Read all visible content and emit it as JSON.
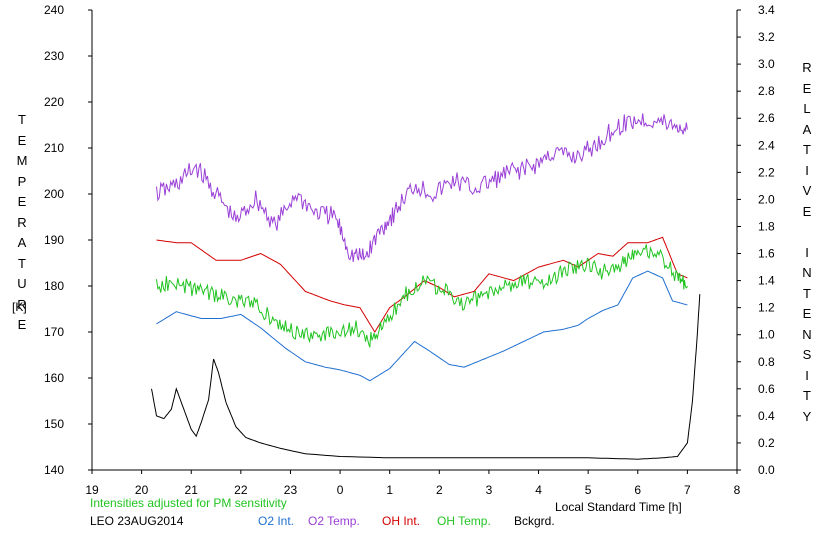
{
  "chart_data": {
    "type": "line",
    "left_title": "TEMPERATURE",
    "left_unit": "[K]",
    "right_title": "RELATIVE INTENSITY",
    "xlabel": "Local Standard Time [h]",
    "note": "Intensities adjusted for PM sensitivity",
    "station_date": "LEO 23AUG2014",
    "xlim": [
      19,
      32
    ],
    "x_ticks": [
      "19",
      "20",
      "21",
      "22",
      "23",
      "0",
      "1",
      "2",
      "3",
      "4",
      "5",
      "6",
      "7",
      "8"
    ],
    "y_left_lim": [
      140,
      240
    ],
    "y_left_ticks": [
      "140",
      "150",
      "160",
      "170",
      "180",
      "190",
      "200",
      "210",
      "220",
      "230",
      "240"
    ],
    "y_right_lim": [
      0.0,
      3.4
    ],
    "y_right_ticks": [
      "0.0",
      "0.2",
      "0.4",
      "0.6",
      "0.8",
      "1.0",
      "1.2",
      "1.4",
      "1.6",
      "1.8",
      "2.0",
      "2.2",
      "2.4",
      "2.6",
      "2.8",
      "3.0",
      "3.2",
      "3.4"
    ],
    "series": [
      {
        "name": "O2 Int.",
        "color": "#1f6fd0",
        "axis": "right",
        "x": [
          20.3,
          20.7,
          21.2,
          21.6,
          22.0,
          22.4,
          22.9,
          23.3,
          23.7,
          24.0,
          24.4,
          24.6,
          25.0,
          25.5,
          25.8,
          26.2,
          26.5,
          26.9,
          27.3,
          27.7,
          28.1,
          28.5,
          28.8,
          29.0,
          29.3,
          29.6,
          29.9,
          30.2,
          30.5,
          30.7,
          31.0
        ],
        "y": [
          1.08,
          1.17,
          1.12,
          1.12,
          1.15,
          1.05,
          0.9,
          0.8,
          0.76,
          0.74,
          0.7,
          0.66,
          0.75,
          0.95,
          0.88,
          0.78,
          0.76,
          0.82,
          0.88,
          0.95,
          1.02,
          1.04,
          1.07,
          1.12,
          1.18,
          1.22,
          1.42,
          1.47,
          1.42,
          1.25,
          1.22
        ]
      },
      {
        "name": "O2 Temp.",
        "color": "#9a40d6",
        "axis": "left",
        "x": [
          20.3,
          20.7,
          21.1,
          21.5,
          21.9,
          22.3,
          22.7,
          23.1,
          23.5,
          23.9,
          24.2,
          24.5,
          24.8,
          25.1,
          25.5,
          25.9,
          26.3,
          26.7,
          27.1,
          27.5,
          27.9,
          28.3,
          28.7,
          29.1,
          29.5,
          29.9,
          30.3,
          30.7,
          31.0
        ],
        "y": [
          200,
          202,
          206,
          200,
          194,
          199,
          193,
          200,
          196,
          195,
          187,
          186,
          192,
          196,
          202,
          200,
          203,
          201,
          203,
          205,
          206,
          209,
          208,
          210,
          214,
          216,
          216,
          215,
          214
        ]
      },
      {
        "name": "OH Int.",
        "color": "#d40000",
        "axis": "right",
        "x": [
          20.3,
          20.7,
          21.0,
          21.5,
          22.0,
          22.4,
          22.8,
          23.3,
          23.8,
          24.1,
          24.4,
          24.7,
          25.0,
          25.3,
          25.7,
          26.0,
          26.3,
          26.7,
          27.0,
          27.5,
          28.0,
          28.5,
          28.8,
          29.2,
          29.5,
          29.8,
          30.2,
          30.5,
          30.8,
          31.0
        ],
        "y": [
          1.7,
          1.68,
          1.68,
          1.55,
          1.55,
          1.6,
          1.52,
          1.32,
          1.25,
          1.22,
          1.2,
          1.02,
          1.2,
          1.28,
          1.4,
          1.35,
          1.28,
          1.32,
          1.45,
          1.4,
          1.5,
          1.55,
          1.5,
          1.6,
          1.58,
          1.68,
          1.68,
          1.72,
          1.45,
          1.42
        ]
      },
      {
        "name": "OH Temp.",
        "color": "#22c422",
        "axis": "left",
        "x": [
          20.3,
          20.7,
          21.1,
          21.5,
          21.9,
          22.3,
          22.7,
          23.1,
          23.5,
          23.9,
          24.3,
          24.6,
          24.9,
          25.3,
          25.7,
          26.1,
          26.5,
          26.9,
          27.3,
          27.7,
          28.1,
          28.5,
          28.9,
          29.3,
          29.7,
          30.0,
          30.4,
          30.8,
          31.0
        ],
        "y": [
          180,
          181,
          179,
          178,
          177,
          176,
          172,
          170,
          169,
          170,
          171,
          168,
          172,
          178,
          181,
          179,
          176,
          178,
          180,
          181,
          181,
          183,
          185,
          183,
          185,
          188,
          187,
          182,
          180
        ]
      },
      {
        "name": "Bckgrd.",
        "color": "#000000",
        "axis": "right",
        "x": [
          20.2,
          20.3,
          20.45,
          20.6,
          20.7,
          20.9,
          21.0,
          21.1,
          21.2,
          21.35,
          21.45,
          21.55,
          21.7,
          21.9,
          22.1,
          22.4,
          22.8,
          23.3,
          24.0,
          25.0,
          26.0,
          27.0,
          28.0,
          29.0,
          30.0,
          30.5,
          30.8,
          31.0,
          31.1,
          31.2,
          31.25
        ],
        "y": [
          0.6,
          0.4,
          0.38,
          0.45,
          0.6,
          0.4,
          0.3,
          0.25,
          0.35,
          0.52,
          0.82,
          0.72,
          0.5,
          0.32,
          0.24,
          0.2,
          0.16,
          0.12,
          0.1,
          0.09,
          0.09,
          0.09,
          0.09,
          0.09,
          0.08,
          0.09,
          0.1,
          0.2,
          0.5,
          1.0,
          1.3
        ]
      }
    ]
  }
}
